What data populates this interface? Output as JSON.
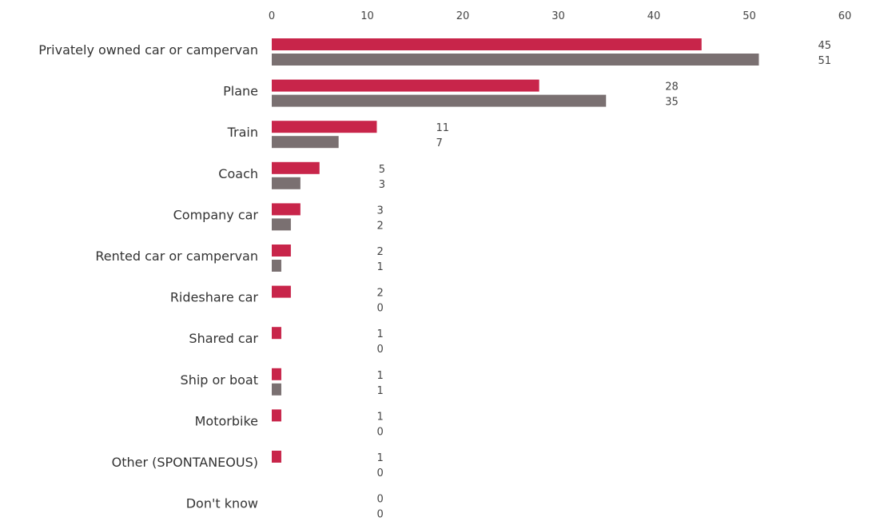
{
  "chart_data": {
    "type": "bar",
    "orientation": "horizontal",
    "title": "",
    "xlabel": "",
    "ylabel": "",
    "xlim": [
      0,
      60
    ],
    "x_ticks": [
      0,
      10,
      20,
      30,
      40,
      50,
      60
    ],
    "x_tick_labels": [
      "0",
      "10",
      "20",
      "30",
      "40",
      "50",
      "60"
    ],
    "grid": false,
    "legend": "none",
    "categories": [
      "Privately owned car or campervan",
      "Plane",
      "Train",
      "Coach",
      "Company car",
      "Rented car or campervan",
      "Rideshare car",
      "Shared car",
      "Ship or boat",
      "Motorbike",
      "Other (SPONTANEOUS)",
      "Don't know"
    ],
    "series": [
      {
        "color": "#c8254a",
        "values": [
          45,
          28,
          11,
          5,
          3,
          2,
          2,
          1,
          1,
          1,
          1,
          0
        ],
        "labels": [
          "45",
          "28",
          "11",
          "5",
          "3",
          "2",
          "2",
          "1",
          "1",
          "1",
          "1",
          "0"
        ]
      },
      {
        "color": "#7a7071",
        "values": [
          51,
          35,
          7,
          3,
          2,
          1,
          0,
          0,
          1,
          0,
          0,
          0
        ],
        "labels": [
          "51",
          "35",
          "7",
          "3",
          "2",
          "1",
          "0",
          "0",
          "1",
          "0",
          "0",
          "0"
        ]
      }
    ]
  }
}
